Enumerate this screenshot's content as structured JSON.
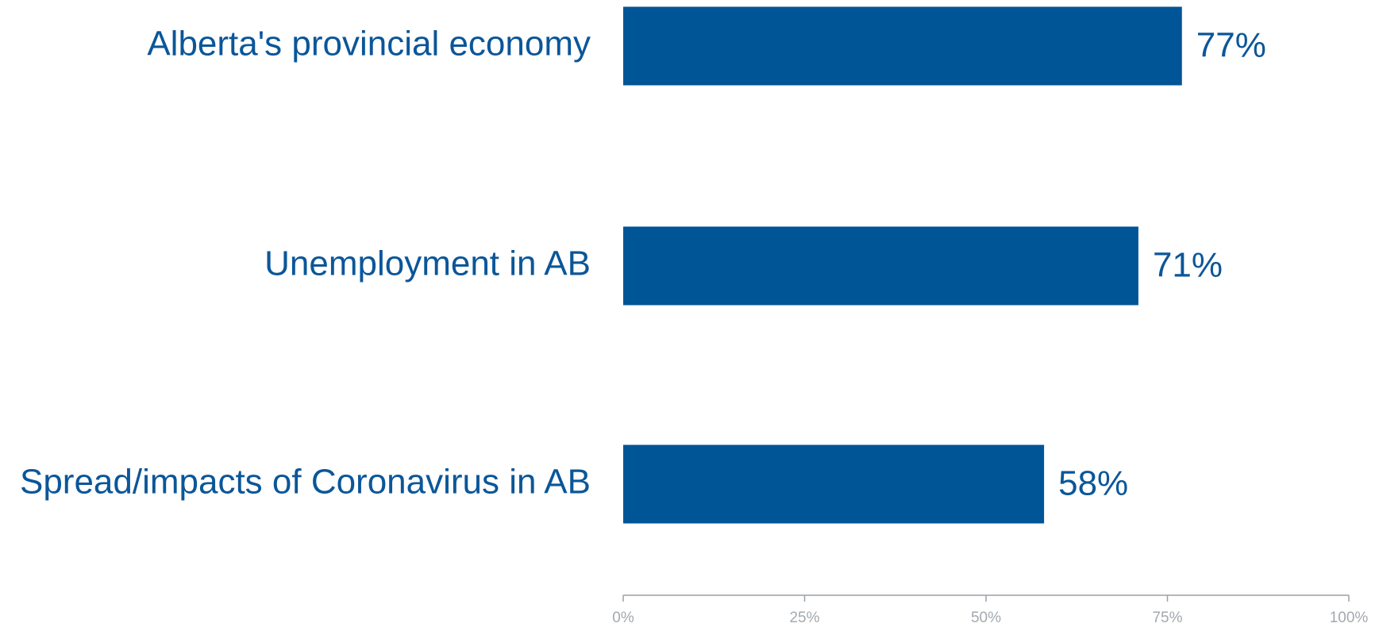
{
  "chart_data": {
    "type": "bar",
    "orientation": "horizontal",
    "categories": [
      "Alberta's provincial economy",
      "Unemployment in AB",
      "Spread/impacts of Coronavirus in AB"
    ],
    "values": [
      77,
      71,
      58
    ],
    "value_labels": [
      "77%",
      "71%",
      "58%"
    ],
    "color": "#005596",
    "xlim": [
      0,
      100
    ],
    "xticks": [
      {
        "value": 0,
        "label": "0%"
      },
      {
        "value": 25,
        "label": "25%"
      },
      {
        "value": 50,
        "label": "50%"
      },
      {
        "value": 75,
        "label": "75%"
      },
      {
        "value": 100,
        "label": "100%"
      }
    ],
    "grid": false
  }
}
